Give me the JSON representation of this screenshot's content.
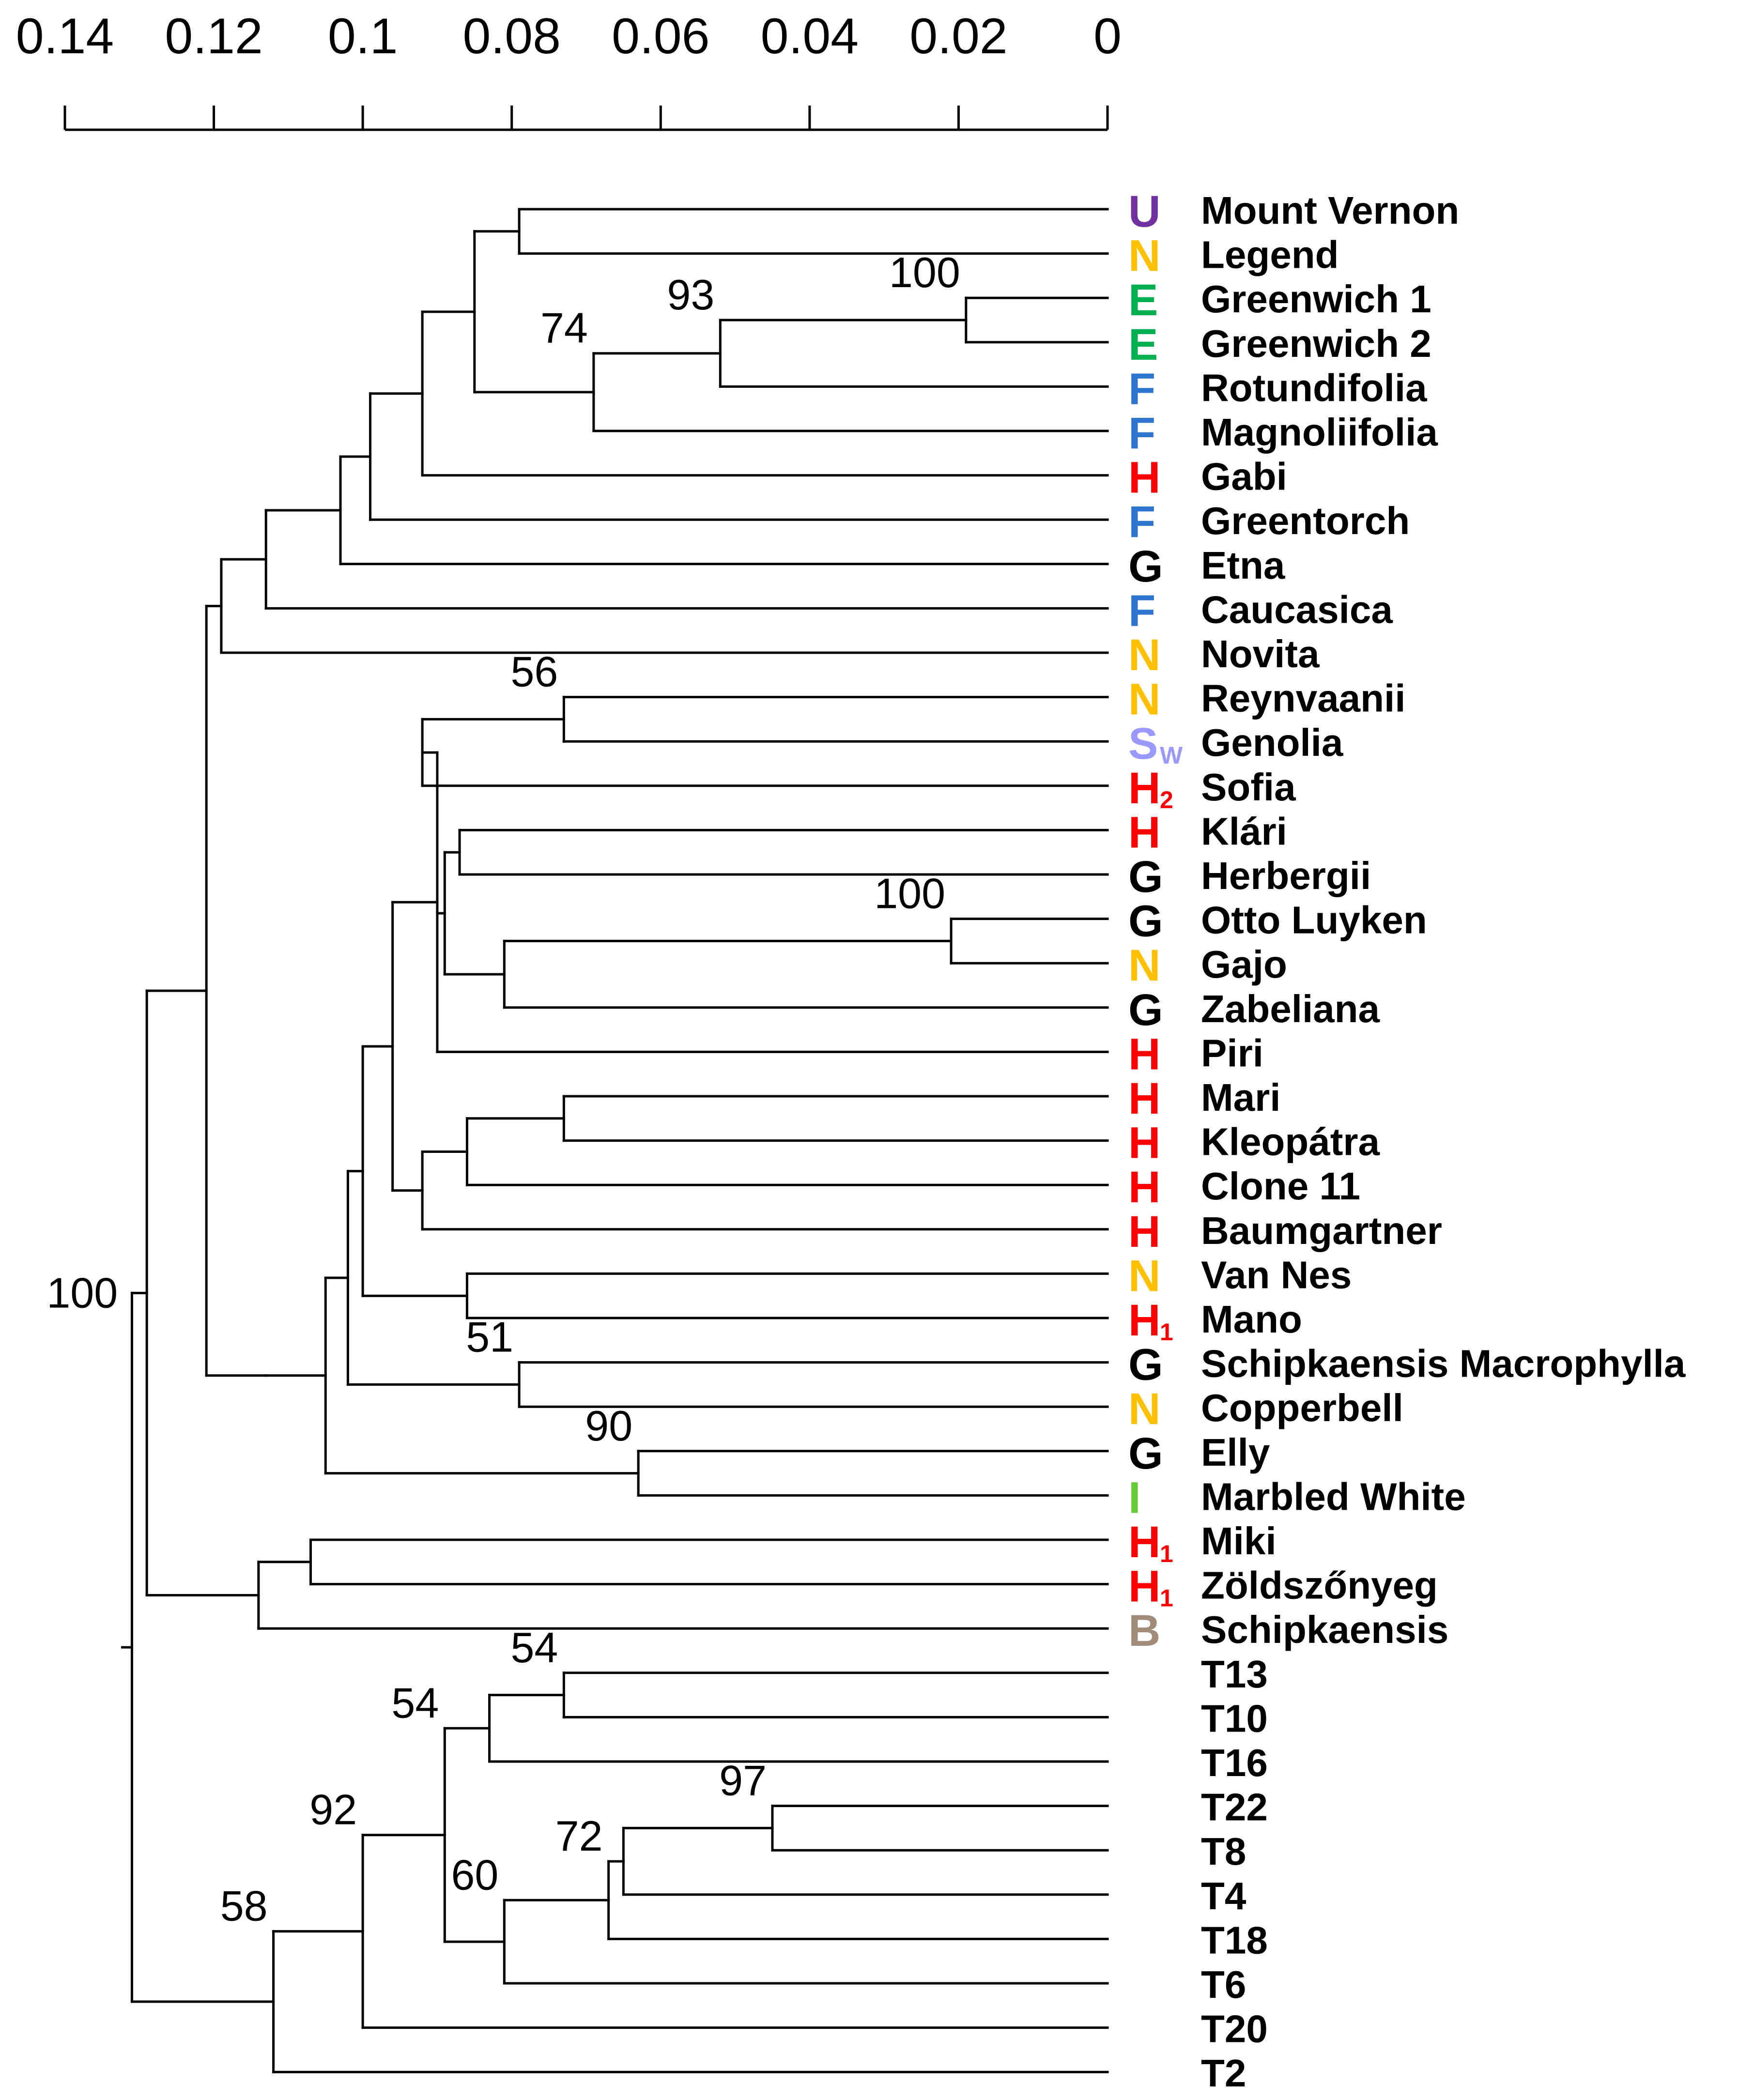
{
  "axis": {
    "ticks": [
      "0.14",
      "0.12",
      "0.1",
      "0.08",
      "0.06",
      "0.04",
      "0.02",
      "0"
    ],
    "tick_values": [
      0.14,
      0.12,
      0.1,
      0.08,
      0.06,
      0.04,
      0.02,
      0
    ]
  },
  "group_colors": {
    "U": "#7030a0",
    "N": "#ffc000",
    "E": "#00b050",
    "F": "#2e75d0",
    "H": "#ff0000",
    "G": "#000000",
    "Sw": "#9999ff",
    "I": "#66cc33",
    "B": "#a08c78"
  },
  "leaves": [
    {
      "name": "Mount Vernon",
      "code": "U",
      "sub": ""
    },
    {
      "name": "Legend",
      "code": "N",
      "sub": ""
    },
    {
      "name": "Greenwich 1",
      "code": "E",
      "sub": ""
    },
    {
      "name": "Greenwich 2",
      "code": "E",
      "sub": ""
    },
    {
      "name": "Rotundifolia",
      "code": "F",
      "sub": ""
    },
    {
      "name": "Magnoliifolia",
      "code": "F",
      "sub": ""
    },
    {
      "name": "Gabi",
      "code": "H",
      "sub": ""
    },
    {
      "name": "Greentorch",
      "code": "F",
      "sub": ""
    },
    {
      "name": "Etna",
      "code": "G",
      "sub": ""
    },
    {
      "name": "Caucasica",
      "code": "F",
      "sub": ""
    },
    {
      "name": "Novita",
      "code": "N",
      "sub": ""
    },
    {
      "name": "Reynvaanii",
      "code": "N",
      "sub": ""
    },
    {
      "name": "Genolia",
      "code": "S",
      "sub": "W",
      "group": "Sw"
    },
    {
      "name": "Sofia",
      "code": "H",
      "sub": "2"
    },
    {
      "name": "Klári",
      "code": "H",
      "sub": ""
    },
    {
      "name": "Herbergii",
      "code": "G",
      "sub": ""
    },
    {
      "name": "Otto Luyken",
      "code": "G",
      "sub": ""
    },
    {
      "name": "Gajo",
      "code": "N",
      "sub": ""
    },
    {
      "name": "Zabeliana",
      "code": "G",
      "sub": ""
    },
    {
      "name": "Piri",
      "code": "H",
      "sub": ""
    },
    {
      "name": "Mari",
      "code": "H",
      "sub": ""
    },
    {
      "name": "Kleopátra",
      "code": "H",
      "sub": ""
    },
    {
      "name": "Clone 11",
      "code": "H",
      "sub": ""
    },
    {
      "name": "Baumgartner",
      "code": "H",
      "sub": ""
    },
    {
      "name": "Van Nes",
      "code": "N",
      "sub": ""
    },
    {
      "name": "Mano",
      "code": "H",
      "sub": "1"
    },
    {
      "name": "Schipkaensis Macrophylla",
      "code": "G",
      "sub": ""
    },
    {
      "name": "Copperbell",
      "code": "N",
      "sub": ""
    },
    {
      "name": "Elly",
      "code": "G",
      "sub": ""
    },
    {
      "name": "Marbled White",
      "code": "I",
      "sub": ""
    },
    {
      "name": "Miki",
      "code": "H",
      "sub": "1"
    },
    {
      "name": "Zöldszőnyeg",
      "code": "H",
      "sub": "1"
    },
    {
      "name": "Schipkaensis",
      "code": "B",
      "sub": ""
    },
    {
      "name": "T13",
      "code": "",
      "sub": ""
    },
    {
      "name": "T10",
      "code": "",
      "sub": ""
    },
    {
      "name": "T16",
      "code": "",
      "sub": ""
    },
    {
      "name": "T22",
      "code": "",
      "sub": ""
    },
    {
      "name": "T8",
      "code": "",
      "sub": ""
    },
    {
      "name": "T4",
      "code": "",
      "sub": ""
    },
    {
      "name": "T18",
      "code": "",
      "sub": ""
    },
    {
      "name": "T6",
      "code": "",
      "sub": ""
    },
    {
      "name": "T20",
      "code": "",
      "sub": ""
    },
    {
      "name": "T2",
      "code": "",
      "sub": ""
    }
  ],
  "tree": {
    "id": "root",
    "height": 0.131,
    "children": [
      {
        "id": "n_big",
        "height": 0.129,
        "support": "100",
        "children": [
          {
            "id": "n_main",
            "height": 0.121,
            "children": [
              {
                "id": "n_A",
                "height": 0.119,
                "children": [
                  {
                    "id": "n_A1",
                    "height": 0.113,
                    "children": [
                      {
                        "id": "n_A2",
                        "height": 0.103,
                        "children": [
                          {
                            "id": "n_A3",
                            "height": 0.099,
                            "children": [
                              {
                                "id": "n_A4",
                                "height": 0.092,
                                "children": [
                                  {
                                    "id": "n_A5",
                                    "height": 0.085,
                                    "children": [
                                      {
                                        "id": "n_MV",
                                        "height": 0.079,
                                        "children": [
                                          {
                                            "leaf": 0
                                          },
                                          {
                                            "leaf": 1
                                          }
                                        ]
                                      },
                                      {
                                        "id": "n_74",
                                        "height": 0.069,
                                        "support": "74",
                                        "children": [
                                          {
                                            "id": "n_93",
                                            "height": 0.052,
                                            "support": "93",
                                            "children": [
                                              {
                                                "id": "n_G100",
                                                "height": 0.019,
                                                "support": "100",
                                                "children": [
                                                  {
                                                    "leaf": 2
                                                  },
                                                  {
                                                    "leaf": 3
                                                  }
                                                ]
                                              },
                                              {
                                                "leaf": 4
                                              }
                                            ]
                                          },
                                          {
                                            "leaf": 5
                                          }
                                        ]
                                      }
                                    ]
                                  },
                                  {
                                    "leaf": 6
                                  }
                                ]
                              },
                              {
                                "leaf": 7
                              }
                            ]
                          },
                          {
                            "leaf": 8
                          }
                        ]
                      },
                      {
                        "leaf": 9
                      }
                    ]
                  },
                  {
                    "leaf": 10
                  }
                ]
              },
              {
                "id": "n_B",
                "height": 0.113,
                "children": [
                  {
                    "id": "n_B1",
                    "height": 0.105,
                    "children": [
                      {
                        "id": "n_B2",
                        "height": 0.102,
                        "children": [
                          {
                            "id": "n_B3",
                            "height": 0.1,
                            "children": [
                              {
                                "id": "n_B4",
                                "height": 0.096,
                                "children": [
                                  {
                                    "id": "n_B5",
                                    "height": 0.09,
                                    "children": [
                                      {
                                        "id": "n_56grp",
                                        "height": 0.092,
                                        "children": [
                                          {
                                            "id": "n_56",
                                            "height": 0.073,
                                            "support": "56",
                                            "children": [
                                              {
                                                "leaf": 11
                                              },
                                              {
                                                "leaf": 12
                                              }
                                            ]
                                          },
                                          {
                                            "leaf": 13
                                          }
                                        ]
                                      },
                                      {
                                        "id": "n_KH",
                                        "height": 0.089,
                                        "children": [
                                          {
                                            "id": "n_KH1",
                                            "height": 0.087,
                                            "children": [
                                              {
                                                "leaf": 14
                                              },
                                              {
                                                "leaf": 15
                                              }
                                            ]
                                          },
                                          {
                                            "id": "n_OZ",
                                            "height": 0.081,
                                            "children": [
                                              {
                                                "id": "n_O100",
                                                "height": 0.021,
                                                "support": "100",
                                                "children": [
                                                  {
                                                    "leaf": 16
                                                  },
                                                  {
                                                    "leaf": 17
                                                  }
                                                ]
                                              },
                                              {
                                                "leaf": 18
                                              }
                                            ]
                                          }
                                        ]
                                      },
                                      {
                                        "leaf": 19
                                      }
                                    ]
                                  },
                                  {
                                    "id": "n_H",
                                    "height": 0.092,
                                    "children": [
                                      {
                                        "id": "n_H1",
                                        "height": 0.086,
                                        "children": [
                                          {
                                            "id": "n_MK",
                                            "height": 0.073,
                                            "children": [
                                              {
                                                "leaf": 20
                                              },
                                              {
                                                "leaf": 21
                                              }
                                            ]
                                          },
                                          {
                                            "leaf": 22
                                          }
                                        ]
                                      },
                                      {
                                        "leaf": 23
                                      }
                                    ]
                                  }
                                ]
                              },
                              {
                                "id": "n_VM",
                                "height": 0.086,
                                "children": [
                                  {
                                    "leaf": 24
                                  },
                                  {
                                    "leaf": 25
                                  }
                                ]
                              }
                            ]
                          },
                          {
                            "id": "n_51",
                            "height": 0.079,
                            "support": "51",
                            "children": [
                              {
                                "leaf": 26
                              },
                              {
                                "leaf": 27
                              }
                            ]
                          }
                        ]
                      },
                      {
                        "id": "n_90",
                        "height": 0.063,
                        "support": "90",
                        "children": [
                          {
                            "leaf": 28
                          },
                          {
                            "leaf": 29
                          }
                        ]
                      }
                    ]
                  }
                ]
              }
            ]
          },
          {
            "id": "n_C",
            "height": 0.114,
            "children": [
              {
                "id": "n_C1",
                "height": 0.107,
                "children": [
                  {
                    "leaf": 30
                  },
                  {
                    "leaf": 31
                  }
                ]
              },
              {
                "leaf": 32
              }
            ]
          }
        ]
      },
      {
        "id": "n_58",
        "height": 0.112,
        "support": "58",
        "children": [
          {
            "id": "n_92",
            "height": 0.1,
            "support": "92",
            "children": [
              {
                "id": "n_54a",
                "height": 0.089,
                "support": "54",
                "children": [
                  {
                    "id": "n_54b",
                    "height": 0.083,
                    "children": [
                      {
                        "id": "n_54c",
                        "height": 0.073,
                        "support": "54",
                        "children": [
                          {
                            "leaf": 33
                          },
                          {
                            "leaf": 34
                          }
                        ]
                      },
                      {
                        "leaf": 35
                      }
                    ]
                  },
                  {
                    "id": "n_60",
                    "height": 0.081,
                    "support": "60",
                    "children": [
                      {
                        "id": "n_72",
                        "height": 0.067,
                        "support": "72",
                        "children": [
                          {
                            "id": "n_72b",
                            "height": 0.065,
                            "children": [
                              {
                                "id": "n_97",
                                "height": 0.045,
                                "support": "97",
                                "children": [
                                  {
                                    "leaf": 36
                                  },
                                  {
                                    "leaf": 37
                                  }
                                ]
                              },
                              {
                                "leaf": 38
                              }
                            ]
                          },
                          {
                            "leaf": 39
                          }
                        ]
                      },
                      {
                        "leaf": 40
                      }
                    ]
                  }
                ]
              },
              {
                "leaf": 41
              }
            ]
          },
          {
            "leaf": 42
          }
        ]
      }
    ]
  }
}
